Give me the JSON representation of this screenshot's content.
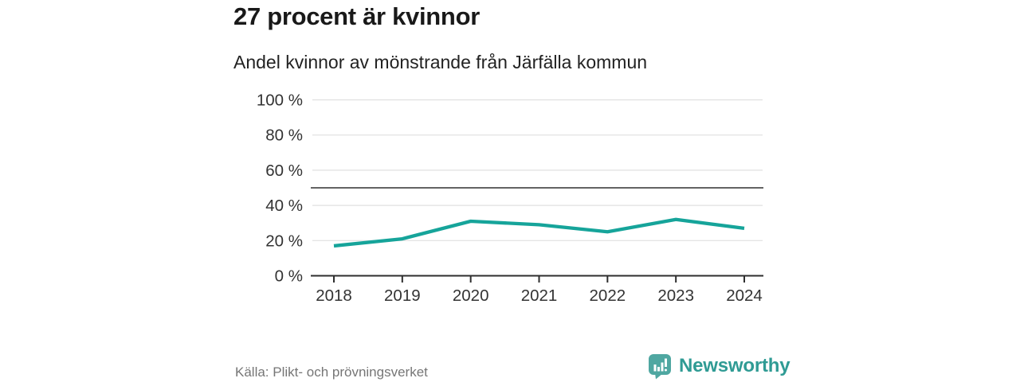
{
  "header": {
    "title": "27 procent är kvinnor",
    "subtitle": "Andel kvinnor av mönstrande från Järfälla kommun"
  },
  "chart_data": {
    "type": "line",
    "x": [
      "2018",
      "2019",
      "2020",
      "2021",
      "2022",
      "2023",
      "2024"
    ],
    "series": [
      {
        "name": "Andel kvinnor av mönstrande",
        "values": [
          17,
          21,
          31,
          29,
          25,
          32,
          27
        ]
      }
    ],
    "unit": "%",
    "title": "27 procent är kvinnor",
    "subtitle": "Andel kvinnor av mönstrande från Järfälla kommun",
    "xlabel": "",
    "ylabel": "",
    "ylim": [
      0,
      100
    ],
    "y_ticks": [
      0,
      20,
      40,
      60,
      80,
      100
    ],
    "y_tick_suffix": " %",
    "reference_line": 50,
    "grid": true,
    "legend": "none",
    "colors": {
      "line": "#16a49a",
      "axis": "#2e2e2e",
      "grid": "#e0e0e0",
      "reference_line": "#4d4d4d",
      "tick_label": "#333333"
    }
  },
  "footer": {
    "source": "Källa: Plikt- och prövningsverket",
    "brand": "Newsworthy",
    "brand_color": "#2f9b94",
    "logo_color": "#4fa7a1"
  }
}
